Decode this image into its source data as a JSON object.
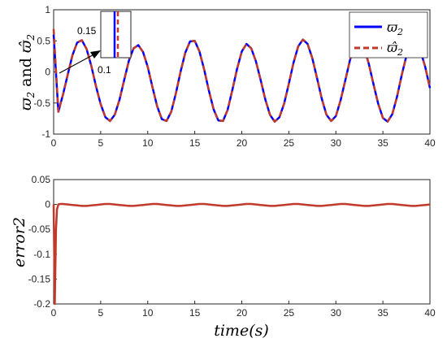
{
  "chart_data": [
    {
      "type": "line",
      "ylabel_parts": [
        "ϖ",
        "2",
        " and ",
        "ϖ̂",
        "2"
      ],
      "xlim": [
        0,
        40
      ],
      "ylim": [
        -1,
        1
      ],
      "xticks": [
        "0",
        "5",
        "10",
        "15",
        "20",
        "25",
        "30",
        "35",
        "40"
      ],
      "yticks": [
        "1",
        "0.5",
        "0",
        "-0.5",
        "-1"
      ],
      "legend_position": "top-right",
      "series": [
        {
          "name_base": "ϖ",
          "name_sub": "2",
          "color": "#0000ff",
          "style": "solid",
          "x": [
            0,
            0.5,
            1,
            1.5,
            2,
            2.5,
            3,
            3.5,
            4,
            4.5,
            5,
            5.5,
            6,
            6.5,
            7,
            7.5,
            8,
            8.5,
            9,
            9.5,
            10,
            10.5,
            11,
            11.5,
            12,
            12.5,
            13,
            13.5,
            14,
            14.5,
            15,
            15.5,
            16,
            16.5,
            17,
            17.5,
            18,
            18.5,
            19,
            19.5,
            20,
            20.5,
            21,
            21.5,
            22,
            22.5,
            23,
            23.5,
            24,
            24.5,
            25,
            25.5,
            26,
            26.5,
            27,
            27.5,
            28,
            28.5,
            29,
            29.5,
            30,
            30.5,
            31,
            31.5,
            32,
            32.5,
            33,
            33.5,
            34,
            34.5,
            35,
            35.5,
            36,
            36.5,
            37,
            37.5,
            38,
            38.5,
            39,
            39.5,
            40
          ],
          "y": [
            0.6,
            -0.64,
            -0.36,
            -0.04,
            0.27,
            0.47,
            0.51,
            0.37,
            0.1,
            -0.23,
            -0.52,
            -0.73,
            -0.79,
            -0.69,
            -0.45,
            -0.13,
            0.18,
            0.38,
            0.43,
            0.32,
            0.08,
            -0.24,
            -0.55,
            -0.76,
            -0.79,
            -0.64,
            -0.34,
            0.01,
            0.31,
            0.49,
            0.5,
            0.33,
            0.04,
            -0.3,
            -0.6,
            -0.78,
            -0.79,
            -0.61,
            -0.29,
            0.05,
            0.33,
            0.45,
            0.38,
            0.17,
            -0.13,
            -0.44,
            -0.69,
            -0.8,
            -0.73,
            -0.51,
            -0.19,
            0.15,
            0.41,
            0.52,
            0.45,
            0.22,
            -0.1,
            -0.43,
            -0.69,
            -0.79,
            -0.71,
            -0.46,
            -0.14,
            0.19,
            0.42,
            0.5,
            0.39,
            0.13,
            -0.2,
            -0.51,
            -0.74,
            -0.8,
            -0.68,
            -0.4,
            -0.05,
            0.26,
            0.45,
            0.48,
            0.34,
            0.08,
            -0.26
          ]
        },
        {
          "name_base": "ϖ̂",
          "name_sub": "2",
          "color": "#c0392b",
          "style": "dashed",
          "x": [
            0,
            0.5,
            1,
            1.5,
            2,
            2.5,
            3,
            3.5,
            4,
            4.5,
            5,
            5.5,
            6,
            6.5,
            7,
            7.5,
            8,
            8.5,
            9,
            9.5,
            10,
            10.5,
            11,
            11.5,
            12,
            12.5,
            13,
            13.5,
            14,
            14.5,
            15,
            15.5,
            16,
            16.5,
            17,
            17.5,
            18,
            18.5,
            19,
            19.5,
            20,
            20.5,
            21,
            21.5,
            22,
            22.5,
            23,
            23.5,
            24,
            24.5,
            25,
            25.5,
            26,
            26.5,
            27,
            27.5,
            28,
            28.5,
            29,
            29.5,
            30,
            30.5,
            31,
            31.5,
            32,
            32.5,
            33,
            33.5,
            34,
            34.5,
            35,
            35.5,
            36,
            36.5,
            37,
            37.5,
            38,
            38.5,
            39,
            39.5,
            40
          ],
          "y": [
            0.69,
            -0.64,
            -0.36,
            -0.04,
            0.27,
            0.47,
            0.51,
            0.37,
            0.1,
            -0.23,
            -0.52,
            -0.73,
            -0.79,
            -0.69,
            -0.45,
            -0.13,
            0.18,
            0.38,
            0.43,
            0.32,
            0.08,
            -0.24,
            -0.55,
            -0.76,
            -0.79,
            -0.64,
            -0.34,
            0.01,
            0.31,
            0.49,
            0.5,
            0.33,
            0.04,
            -0.3,
            -0.6,
            -0.78,
            -0.79,
            -0.61,
            -0.29,
            0.05,
            0.33,
            0.45,
            0.38,
            0.17,
            -0.13,
            -0.44,
            -0.69,
            -0.8,
            -0.73,
            -0.51,
            -0.19,
            0.15,
            0.41,
            0.52,
            0.45,
            0.22,
            -0.1,
            -0.43,
            -0.69,
            -0.79,
            -0.71,
            -0.46,
            -0.14,
            0.19,
            0.42,
            0.5,
            0.39,
            0.13,
            -0.2,
            -0.51,
            -0.74,
            -0.8,
            -0.68,
            -0.4,
            -0.05,
            0.26,
            0.45,
            0.48,
            0.34,
            0.08,
            -0.26
          ]
        }
      ],
      "inset": {
        "ticks": [
          "0.15",
          "0.1"
        ],
        "xlim": [
          0.02,
          0.16
        ],
        "ylim": [
          0.06,
          0.2
        ]
      }
    },
    {
      "type": "line",
      "ylabel": "error2",
      "xlabel": "time(s)",
      "xlim": [
        0,
        40
      ],
      "ylim": [
        -0.2,
        0.05
      ],
      "xticks": [
        "0",
        "5",
        "10",
        "15",
        "20",
        "25",
        "30",
        "35",
        "40"
      ],
      "yticks": [
        "0.05",
        "0",
        "-0.05",
        "-0.1",
        "-0.15",
        "-0.2"
      ],
      "series": [
        {
          "color": "#c0392b",
          "x": [
            0,
            0.12,
            0.25,
            0.35,
            0.5,
            0.7,
            1,
            1.5,
            2,
            2.5,
            3,
            3.5,
            4,
            4.5,
            5,
            5.5,
            6,
            6.5,
            7,
            7.5,
            8,
            8.5,
            9,
            9.5,
            10,
            10.5,
            11,
            11.5,
            12,
            12.5,
            13,
            13.5,
            14,
            14.5,
            15,
            15.5,
            16,
            16.5,
            17,
            17.5,
            18,
            18.5,
            19,
            19.5,
            20,
            20.5,
            21,
            21.5,
            22,
            22.5,
            23,
            23.5,
            24,
            24.5,
            25,
            25.5,
            26,
            26.5,
            27,
            27.5,
            28,
            28.5,
            29,
            29.5,
            30,
            30.5,
            31,
            31.5,
            32,
            32.5,
            33,
            33.5,
            34,
            34.5,
            35,
            35.5,
            36,
            36.5,
            37,
            37.5,
            38,
            38.5,
            39,
            39.5,
            40
          ],
          "y": [
            0,
            -0.2,
            -0.05,
            -0.01,
            0.0,
            0.001,
            0.001,
            0.0,
            -0.001,
            -0.002,
            -0.003,
            -0.003,
            -0.002,
            -0.001,
            0.0,
            0.001,
            0.001,
            0.0,
            -0.001,
            -0.002,
            -0.003,
            -0.003,
            -0.002,
            -0.001,
            0.0,
            0.001,
            0.001,
            0.0,
            -0.001,
            -0.002,
            -0.003,
            -0.003,
            -0.002,
            -0.001,
            0.0,
            0.001,
            0.001,
            0.0,
            -0.001,
            -0.002,
            -0.003,
            -0.003,
            -0.002,
            -0.001,
            0.0,
            0.001,
            0.001,
            0.0,
            -0.001,
            -0.002,
            -0.003,
            -0.003,
            -0.002,
            -0.001,
            0.0,
            0.001,
            0.001,
            0.0,
            -0.001,
            -0.002,
            -0.003,
            -0.003,
            -0.002,
            -0.001,
            0.0,
            0.001,
            0.001,
            0.0,
            -0.001,
            -0.002,
            -0.003,
            -0.003,
            -0.002,
            -0.001,
            0.0,
            0.001,
            0.001,
            0.0,
            -0.001,
            -0.002,
            -0.003,
            -0.003,
            -0.002,
            -0.001,
            0.0
          ]
        }
      ]
    }
  ]
}
